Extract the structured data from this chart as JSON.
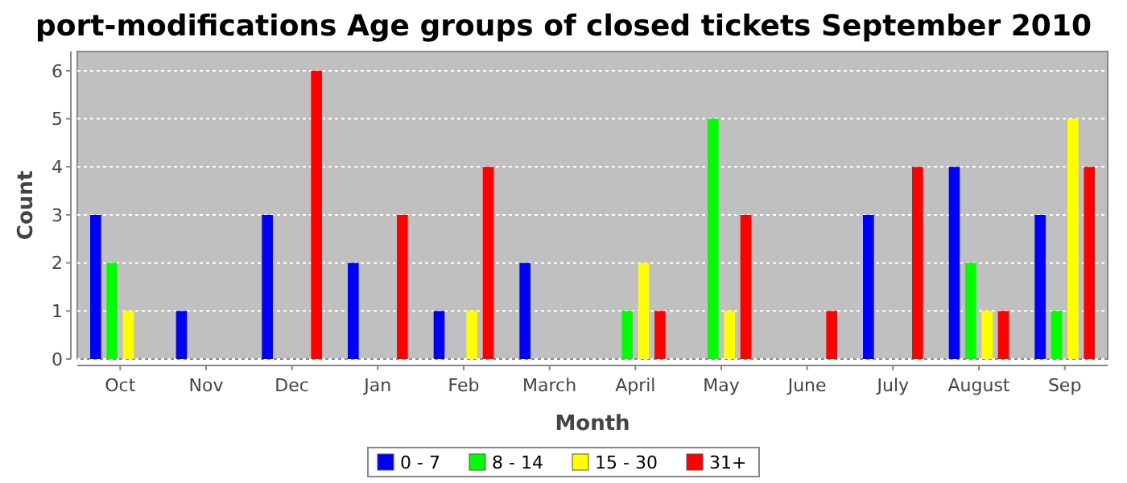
{
  "chart_data": {
    "type": "bar",
    "title": "port-modifications Age groups of closed tickets September 2010",
    "xlabel": "Month",
    "ylabel": "Count",
    "categories": [
      "Oct",
      "Nov",
      "Dec",
      "Jan",
      "Feb",
      "March",
      "April",
      "May",
      "June",
      "July",
      "August",
      "Sep"
    ],
    "series": [
      {
        "name": "0 - 7",
        "color": "#0000ff",
        "values": [
          3,
          1,
          3,
          2,
          1,
          2,
          0,
          0,
          0,
          3,
          4,
          3
        ]
      },
      {
        "name": "8 - 14",
        "color": "#00ff00",
        "values": [
          2,
          0,
          0,
          0,
          0,
          0,
          1,
          5,
          0,
          0,
          2,
          1
        ]
      },
      {
        "name": "15 - 30",
        "color": "#ffff00",
        "values": [
          1,
          0,
          0,
          0,
          1,
          0,
          2,
          1,
          0,
          0,
          1,
          5
        ]
      },
      {
        "name": "31+",
        "color": "#ff0000",
        "values": [
          0,
          0,
          6,
          3,
          4,
          0,
          1,
          3,
          1,
          4,
          1,
          4
        ]
      }
    ],
    "ylim": [
      0,
      6.4
    ],
    "yticks": [
      0,
      1,
      2,
      3,
      4,
      5,
      6
    ],
    "grid": "y",
    "legend": "bottom"
  }
}
